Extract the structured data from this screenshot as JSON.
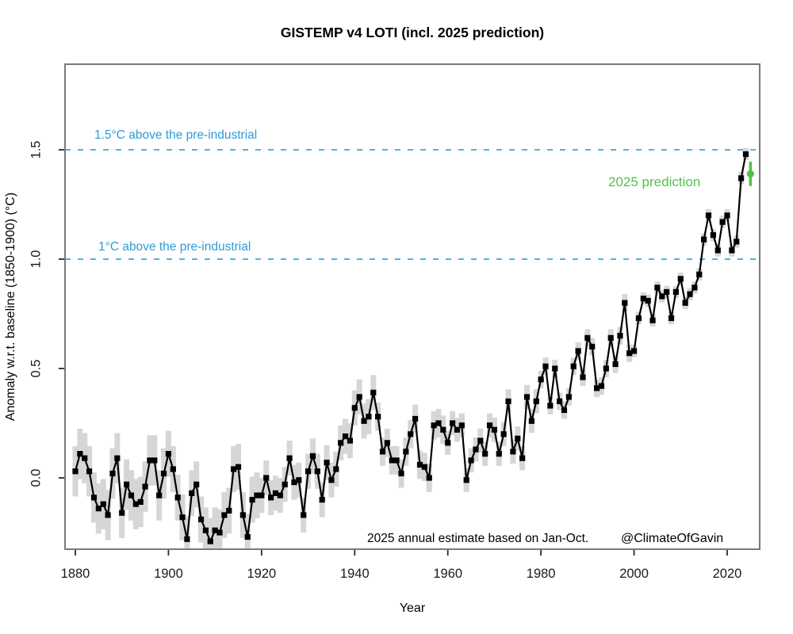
{
  "colors": {
    "series_line": "#000000",
    "marker": "#000000",
    "uncertainty_band": "#D6D6D6",
    "threshold_text_blue": "#2E9BD7",
    "threshold_dash_blue": "#41A4DC",
    "prediction_green": "#53C247",
    "box_gray": "#7a7a7a",
    "tick_color": "#2b2b2b",
    "tick_text": "#1a1a1a",
    "background": "#ffffff"
  },
  "chart_data": {
    "type": "line",
    "title": "GISTEMP v4 LOTI (incl. 2025 prediction)",
    "xlabel": "Year",
    "ylabel": "Anomaly w.r.t. baseline (1850-1900) (°C)",
    "xlim": [
      1877.8,
      2027.0
    ],
    "ylim": [
      -0.33,
      1.89
    ],
    "x_ticks": [
      1880,
      1900,
      1920,
      1940,
      1960,
      1980,
      2000,
      2020
    ],
    "y_ticks": [
      0.0,
      0.5,
      1.0,
      1.5
    ],
    "y_tick_labels": [
      "0.0",
      "0.5",
      "1.0",
      "1.5"
    ],
    "grid": false,
    "legend": "none",
    "series": [
      {
        "name": "GISTEMP v4 LOTI annual mean anomaly",
        "marker": "filled-square",
        "x_start": 1880,
        "x_end": 2024,
        "y": [
          0.03,
          0.11,
          0.09,
          0.03,
          -0.09,
          -0.14,
          -0.12,
          -0.17,
          0.02,
          0.09,
          -0.16,
          -0.03,
          -0.08,
          -0.12,
          -0.11,
          -0.04,
          0.08,
          0.08,
          -0.08,
          0.02,
          0.11,
          0.04,
          -0.09,
          -0.18,
          -0.28,
          -0.07,
          -0.03,
          -0.19,
          -0.24,
          -0.29,
          -0.24,
          -0.25,
          -0.17,
          -0.15,
          0.04,
          0.05,
          -0.17,
          -0.27,
          -0.1,
          -0.08,
          -0.08,
          0.0,
          -0.09,
          -0.07,
          -0.08,
          -0.03,
          0.09,
          -0.02,
          -0.01,
          -0.17,
          0.03,
          0.1,
          0.03,
          -0.1,
          0.07,
          -0.01,
          0.04,
          0.16,
          0.19,
          0.17,
          0.32,
          0.37,
          0.26,
          0.28,
          0.39,
          0.28,
          0.12,
          0.16,
          0.08,
          0.08,
          0.02,
          0.12,
          0.2,
          0.27,
          0.06,
          0.05,
          0.0,
          0.24,
          0.25,
          0.22,
          0.16,
          0.25,
          0.22,
          0.24,
          -0.01,
          0.08,
          0.13,
          0.17,
          0.11,
          0.24,
          0.22,
          0.11,
          0.2,
          0.35,
          0.12,
          0.18,
          0.09,
          0.37,
          0.26,
          0.35,
          0.45,
          0.51,
          0.33,
          0.5,
          0.35,
          0.31,
          0.37,
          0.51,
          0.58,
          0.46,
          0.64,
          0.6,
          0.41,
          0.42,
          0.5,
          0.64,
          0.52,
          0.65,
          0.8,
          0.57,
          0.58,
          0.73,
          0.82,
          0.81,
          0.72,
          0.87,
          0.83,
          0.85,
          0.73,
          0.85,
          0.91,
          0.8,
          0.84,
          0.87,
          0.93,
          1.09,
          1.2,
          1.11,
          1.04,
          1.17,
          1.2,
          1.04,
          1.08,
          1.37,
          1.48
        ]
      }
    ],
    "uncertainty_band": {
      "style": "per-year vertical bars",
      "eras": [
        {
          "from": 1880,
          "to": 1899,
          "hw": 0.115
        },
        {
          "from": 1900,
          "to": 1919,
          "hw": 0.105
        },
        {
          "from": 1920,
          "to": 1944,
          "hw": 0.08
        },
        {
          "from": 1945,
          "to": 1959,
          "hw": 0.065
        },
        {
          "from": 1960,
          "to": 1979,
          "hw": 0.055
        },
        {
          "from": 1980,
          "to": 1999,
          "hw": 0.04
        },
        {
          "from": 2000,
          "to": 2024,
          "hw": 0.028
        }
      ]
    },
    "prediction": {
      "label": "2025 prediction",
      "year": 2025,
      "value": 1.39,
      "ci_low": 1.34,
      "ci_high": 1.44
    },
    "reference_lines": [
      {
        "y": 1.5,
        "label": "1.5°C above the pre-industrial"
      },
      {
        "y": 1.0,
        "label": "1°C above the pre-industrial"
      }
    ],
    "notes": [
      "2025 annual estimate based on Jan-Oct.",
      "@ClimateOfGavin"
    ]
  }
}
